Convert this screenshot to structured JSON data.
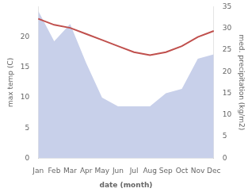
{
  "chart_data": {
    "type": "line",
    "categories": [
      "Jan",
      "Feb",
      "Mar",
      "Apr",
      "May",
      "Jun",
      "Jul",
      "Aug",
      "Sep",
      "Oct",
      "Nov",
      "Dec"
    ],
    "series": [
      {
        "type": "area",
        "color": "#c8d0ea",
        "axis": "y2",
        "values": [
          34,
          27,
          31,
          22,
          14,
          12,
          12,
          12,
          15,
          16,
          23,
          24
        ]
      },
      {
        "type": "line",
        "color": "#c0504d",
        "values": [
          23,
          22,
          21.5,
          20.5,
          19.5,
          18.5,
          17.5,
          17,
          17.5,
          18.5,
          20,
          21
        ]
      }
    ],
    "xlabel": "date (month)",
    "ylabel": "max temp (C)",
    "y2label": "med. precipitation (kg/m2)",
    "ylim": [
      0,
      25
    ],
    "yticks": [
      0,
      5,
      10,
      15,
      20
    ],
    "y2lim": [
      0,
      35
    ],
    "y2ticks": [
      0,
      5,
      10,
      15,
      20,
      25,
      30,
      35
    ],
    "grid": false
  }
}
